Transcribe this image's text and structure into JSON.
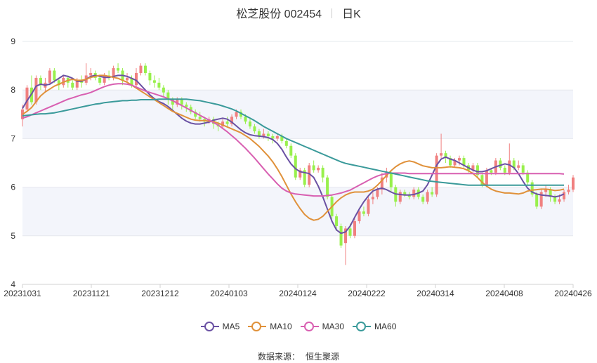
{
  "header": {
    "title": "松芝股份 002454",
    "period": "日K"
  },
  "source": {
    "label": "数据来源：",
    "name": "恒生聚源"
  },
  "chart_data": {
    "type": "candlestick",
    "ylim": [
      4,
      9
    ],
    "y_ticks": [
      "4",
      "5",
      "6",
      "7",
      "8",
      "9"
    ],
    "x_ticks": [
      "20231031",
      "20231121",
      "20231212",
      "20240103",
      "20240124",
      "20240222",
      "20240314",
      "20240408",
      "20240426"
    ],
    "grid": true,
    "legend_placement": "bottom",
    "colors": {
      "up": "#f08080",
      "down": "#98f04c",
      "band": "#f3f5fb",
      "grid": "#e6e8ee",
      "axis": "#d0d0d0"
    },
    "candles": [
      [
        7.4,
        7.6,
        7.25,
        7.7
      ],
      [
        7.6,
        8.05,
        7.55,
        8.1
      ],
      [
        8.05,
        7.75,
        7.7,
        8.3
      ],
      [
        7.75,
        8.25,
        7.7,
        8.3
      ],
      [
        8.25,
        8.1,
        8.0,
        8.3
      ],
      [
        8.05,
        8.15,
        7.95,
        8.25
      ],
      [
        8.15,
        8.4,
        8.1,
        8.45
      ],
      [
        8.4,
        8.2,
        8.15,
        8.45
      ],
      [
        8.2,
        8.1,
        8.0,
        8.25
      ],
      [
        8.1,
        8.25,
        8.05,
        8.3
      ],
      [
        8.25,
        8.15,
        8.05,
        8.3
      ],
      [
        8.15,
        8.05,
        8.0,
        8.2
      ],
      [
        8.05,
        8.2,
        8.0,
        8.25
      ],
      [
        8.2,
        8.15,
        8.05,
        8.3
      ],
      [
        8.15,
        8.3,
        8.1,
        8.55
      ],
      [
        8.3,
        8.35,
        8.2,
        8.45
      ],
      [
        8.35,
        8.25,
        8.2,
        8.4
      ],
      [
        8.25,
        8.15,
        8.1,
        8.3
      ],
      [
        8.15,
        8.3,
        8.1,
        8.35
      ],
      [
        8.3,
        8.25,
        8.2,
        8.4
      ],
      [
        8.25,
        8.45,
        8.2,
        8.5
      ],
      [
        8.45,
        8.4,
        8.35,
        8.55
      ],
      [
        8.4,
        8.2,
        8.1,
        8.45
      ],
      [
        8.2,
        8.25,
        8.15,
        8.35
      ],
      [
        8.25,
        8.1,
        8.05,
        8.3
      ],
      [
        8.1,
        8.35,
        8.05,
        8.45
      ],
      [
        8.35,
        8.5,
        8.3,
        8.55
      ],
      [
        8.5,
        8.35,
        8.3,
        8.55
      ],
      [
        8.35,
        8.2,
        8.1,
        8.4
      ],
      [
        8.2,
        8.15,
        8.05,
        8.3
      ],
      [
        8.15,
        8.05,
        8.0,
        8.25
      ],
      [
        8.05,
        7.95,
        7.85,
        8.1
      ],
      [
        7.95,
        7.8,
        7.7,
        8.0
      ],
      [
        7.8,
        7.7,
        7.6,
        7.85
      ],
      [
        7.7,
        7.8,
        7.65,
        7.85
      ],
      [
        7.8,
        7.7,
        7.6,
        7.85
      ],
      [
        7.7,
        7.65,
        7.55,
        7.75
      ],
      [
        7.65,
        7.55,
        7.5,
        7.7
      ],
      [
        7.55,
        7.45,
        7.4,
        7.6
      ],
      [
        7.45,
        7.4,
        7.35,
        7.55
      ],
      [
        7.4,
        7.35,
        7.25,
        7.45
      ],
      [
        7.35,
        7.4,
        7.3,
        7.45
      ],
      [
        7.4,
        7.3,
        7.2,
        7.45
      ],
      [
        7.3,
        7.25,
        7.15,
        7.35
      ],
      [
        7.25,
        7.35,
        7.2,
        7.4
      ],
      [
        7.35,
        7.3,
        7.25,
        7.45
      ],
      [
        7.3,
        7.45,
        7.25,
        7.5
      ],
      [
        7.45,
        7.55,
        7.4,
        7.6
      ],
      [
        7.55,
        7.45,
        7.4,
        7.6
      ],
      [
        7.45,
        7.35,
        7.3,
        7.5
      ],
      [
        7.35,
        7.25,
        7.2,
        7.4
      ],
      [
        7.25,
        7.15,
        7.1,
        7.3
      ],
      [
        7.15,
        7.05,
        7.0,
        7.2
      ],
      [
        7.05,
        7.1,
        7.0,
        7.2
      ],
      [
        7.1,
        7.05,
        6.95,
        7.15
      ],
      [
        7.05,
        7.0,
        6.9,
        7.1
      ],
      [
        7.0,
        7.05,
        6.95,
        7.1
      ],
      [
        7.05,
        6.95,
        6.9,
        7.1
      ],
      [
        6.95,
        6.85,
        6.8,
        7.0
      ],
      [
        6.85,
        6.65,
        6.6,
        6.9
      ],
      [
        6.65,
        6.2,
        6.15,
        6.7
      ],
      [
        6.2,
        6.35,
        6.15,
        6.4
      ],
      [
        6.35,
        6.05,
        6.0,
        6.4
      ],
      [
        6.05,
        6.45,
        6.0,
        6.5
      ],
      [
        6.45,
        6.35,
        6.3,
        6.55
      ],
      [
        6.35,
        6.4,
        6.3,
        6.45
      ],
      [
        6.4,
        6.2,
        6.1,
        6.45
      ],
      [
        6.2,
        5.8,
        5.75,
        6.25
      ],
      [
        5.8,
        5.4,
        5.35,
        5.85
      ],
      [
        5.4,
        5.2,
        5.1,
        5.45
      ],
      [
        5.2,
        4.8,
        4.75,
        5.25
      ],
      [
        4.85,
        5.15,
        4.4,
        5.2
      ],
      [
        5.15,
        5.0,
        4.95,
        5.25
      ],
      [
        5.0,
        5.3,
        4.95,
        5.35
      ],
      [
        5.3,
        5.5,
        5.25,
        5.55
      ],
      [
        5.5,
        5.45,
        5.4,
        5.6
      ],
      [
        5.45,
        5.75,
        5.4,
        5.8
      ],
      [
        5.75,
        5.8,
        5.65,
        5.9
      ],
      [
        5.8,
        5.95,
        5.75,
        6.0
      ],
      [
        5.95,
        6.2,
        5.85,
        6.3
      ],
      [
        6.2,
        6.3,
        6.1,
        6.4
      ],
      [
        6.3,
        6.0,
        5.9,
        6.35
      ],
      [
        6.0,
        5.7,
        5.6,
        6.05
      ],
      [
        5.7,
        5.9,
        5.65,
        5.95
      ],
      [
        5.9,
        5.85,
        5.8,
        5.95
      ],
      [
        5.85,
        5.8,
        5.75,
        5.9
      ],
      [
        5.8,
        5.95,
        5.75,
        6.0
      ],
      [
        5.95,
        5.8,
        5.75,
        6.0
      ],
      [
        5.8,
        5.7,
        5.65,
        5.85
      ],
      [
        5.7,
        5.9,
        5.65,
        5.95
      ],
      [
        5.9,
        5.85,
        5.8,
        6.0
      ],
      [
        5.85,
        6.65,
        5.8,
        6.7
      ],
      [
        6.65,
        6.7,
        6.6,
        7.1
      ],
      [
        6.7,
        6.6,
        6.5,
        6.75
      ],
      [
        6.6,
        6.45,
        6.4,
        6.65
      ],
      [
        6.45,
        6.55,
        6.4,
        6.6
      ],
      [
        6.55,
        6.6,
        6.45,
        6.65
      ],
      [
        6.6,
        6.45,
        6.4,
        6.65
      ],
      [
        6.45,
        6.35,
        6.3,
        6.5
      ],
      [
        6.35,
        6.45,
        6.3,
        6.5
      ],
      [
        6.45,
        6.25,
        6.2,
        6.5
      ],
      [
        6.25,
        6.05,
        6.0,
        6.3
      ],
      [
        6.05,
        6.35,
        6.0,
        6.4
      ],
      [
        6.35,
        6.3,
        6.25,
        6.4
      ],
      [
        6.3,
        6.55,
        6.25,
        6.6
      ],
      [
        6.55,
        6.4,
        6.35,
        6.6
      ],
      [
        6.4,
        6.3,
        6.25,
        6.45
      ],
      [
        6.3,
        6.55,
        6.25,
        6.9
      ],
      [
        6.55,
        6.4,
        6.35,
        6.6
      ],
      [
        6.4,
        6.45,
        6.35,
        6.55
      ],
      [
        6.45,
        6.3,
        6.25,
        6.5
      ],
      [
        6.3,
        6.1,
        6.05,
        6.35
      ],
      [
        6.1,
        5.85,
        5.8,
        6.15
      ],
      [
        5.85,
        5.6,
        5.55,
        5.9
      ],
      [
        5.6,
        5.9,
        5.55,
        5.95
      ],
      [
        5.9,
        5.95,
        5.8,
        6.05
      ],
      [
        5.95,
        5.8,
        5.7,
        6.0
      ],
      [
        5.8,
        5.7,
        5.65,
        5.85
      ],
      [
        5.7,
        5.75,
        5.65,
        5.85
      ],
      [
        5.75,
        5.9,
        5.7,
        5.95
      ],
      [
        5.9,
        5.95,
        5.85,
        6.05
      ],
      [
        5.95,
        6.2,
        5.9,
        6.25
      ]
    ],
    "series": [
      {
        "name": "MA5",
        "color": "#6a51a3",
        "values": [
          7.62,
          7.78,
          7.92,
          8.08,
          8.12,
          8.1,
          8.12,
          8.18,
          8.24,
          8.3,
          8.28,
          8.24,
          8.18,
          8.18,
          8.22,
          8.28,
          8.3,
          8.28,
          8.26,
          8.26,
          8.28,
          8.3,
          8.3,
          8.28,
          8.24,
          8.2,
          8.1,
          8.0,
          7.9,
          7.82,
          7.76,
          7.72,
          7.66,
          7.58,
          7.5,
          7.42,
          7.36,
          7.32,
          7.3,
          7.3,
          7.32,
          7.34,
          7.38,
          7.4,
          7.42,
          7.4,
          7.34,
          7.26,
          7.18,
          7.12,
          7.08,
          7.06,
          7.05,
          7.04,
          7.02,
          6.98,
          6.9,
          6.78,
          6.62,
          6.48,
          6.38,
          6.32,
          6.3,
          6.28,
          6.2,
          6.02,
          5.8,
          5.55,
          5.3,
          5.12,
          5.05,
          5.08,
          5.2,
          5.38,
          5.55,
          5.7,
          5.82,
          5.92,
          5.96,
          5.98,
          5.95,
          5.9,
          5.86,
          5.85,
          5.84,
          5.84,
          5.85,
          5.88,
          5.92,
          6.05,
          6.25,
          6.45,
          6.58,
          6.62,
          6.58,
          6.55,
          6.5,
          6.45,
          6.4,
          6.35,
          6.32,
          6.32,
          6.34,
          6.38,
          6.42,
          6.45,
          6.48,
          6.46,
          6.4,
          6.28,
          6.12,
          5.98,
          5.9,
          5.86,
          5.84,
          5.83,
          5.82,
          5.8,
          5.82,
          5.86
        ]
      },
      {
        "name": "MA10",
        "color": "#e0913a",
        "values": [
          7.5,
          7.56,
          7.64,
          7.76,
          7.88,
          7.96,
          8.02,
          8.08,
          8.12,
          8.16,
          8.2,
          8.22,
          8.2,
          8.2,
          8.22,
          8.26,
          8.28,
          8.3,
          8.3,
          8.28,
          8.26,
          8.24,
          8.2,
          8.16,
          8.1,
          8.04,
          7.98,
          7.92,
          7.86,
          7.8,
          7.74,
          7.68,
          7.62,
          7.56,
          7.52,
          7.48,
          7.44,
          7.4,
          7.38,
          7.37,
          7.37,
          7.36,
          7.35,
          7.32,
          7.28,
          7.24,
          7.2,
          7.16,
          7.12,
          7.06,
          7.0,
          6.92,
          6.84,
          6.74,
          6.64,
          6.52,
          6.38,
          6.22,
          6.04,
          5.86,
          5.7,
          5.56,
          5.44,
          5.36,
          5.32,
          5.34,
          5.4,
          5.5,
          5.6,
          5.7,
          5.78,
          5.84,
          5.88,
          5.9,
          5.9,
          5.9,
          5.92,
          5.96,
          6.04,
          6.14,
          6.24,
          6.34,
          6.42,
          6.48,
          6.52,
          6.54,
          6.52,
          6.48,
          6.44,
          6.42,
          6.4,
          6.4,
          6.4,
          6.41,
          6.42,
          6.41,
          6.4,
          6.38,
          6.34,
          6.28,
          6.2,
          6.1,
          6.02,
          5.96,
          5.92,
          5.9,
          5.88,
          5.88,
          5.87,
          5.86,
          5.88,
          5.92,
          5.94,
          5.95,
          5.96,
          5.96,
          5.95,
          5.93,
          5.94,
          5.96
        ]
      },
      {
        "name": "MA30",
        "color": "#d85fb1",
        "values": [
          7.42,
          7.45,
          7.49,
          7.53,
          7.57,
          7.61,
          7.65,
          7.69,
          7.73,
          7.77,
          7.81,
          7.84,
          7.87,
          7.9,
          7.92,
          7.95,
          7.99,
          8.03,
          8.07,
          8.1,
          8.12,
          8.13,
          8.13,
          8.12,
          8.1,
          8.06,
          8.02,
          7.98,
          7.95,
          7.92,
          7.89,
          7.86,
          7.82,
          7.78,
          7.73,
          7.68,
          7.63,
          7.58,
          7.53,
          7.48,
          7.43,
          7.38,
          7.33,
          7.28,
          7.21,
          7.14,
          7.06,
          6.98,
          6.89,
          6.8,
          6.7,
          6.6,
          6.49,
          6.38,
          6.27,
          6.17,
          6.07,
          5.98,
          5.92,
          5.88,
          5.86,
          5.85,
          5.84,
          5.83,
          5.82,
          5.82,
          5.82,
          5.83,
          5.84,
          5.86,
          5.88,
          5.91,
          5.94,
          5.99,
          6.04,
          6.09,
          6.14,
          6.19,
          6.23,
          6.26,
          6.28,
          6.29,
          6.29,
          6.29,
          6.29,
          6.28,
          6.28,
          6.28,
          6.28,
          6.28,
          6.28,
          6.28,
          6.28,
          6.28,
          6.28,
          6.28,
          6.28,
          6.28,
          6.28,
          6.28,
          6.28,
          6.28,
          6.28,
          6.28,
          6.28,
          6.28,
          6.28,
          6.28,
          6.28,
          6.28,
          6.28,
          6.28,
          6.28,
          6.28,
          6.28,
          6.28,
          6.28,
          6.28,
          6.28,
          6.27
        ]
      },
      {
        "name": "MA60",
        "color": "#3a9a9a",
        "values": [
          7.47,
          7.48,
          7.49,
          7.5,
          7.51,
          7.51,
          7.52,
          7.53,
          7.55,
          7.57,
          7.59,
          7.61,
          7.63,
          7.65,
          7.67,
          7.69,
          7.71,
          7.72,
          7.74,
          7.75,
          7.76,
          7.77,
          7.78,
          7.78,
          7.79,
          7.79,
          7.8,
          7.8,
          7.8,
          7.8,
          7.81,
          7.81,
          7.81,
          7.81,
          7.81,
          7.81,
          7.81,
          7.8,
          7.79,
          7.78,
          7.76,
          7.74,
          7.72,
          7.7,
          7.67,
          7.64,
          7.61,
          7.57,
          7.52,
          7.47,
          7.42,
          7.37,
          7.31,
          7.25,
          7.2,
          7.15,
          7.1,
          7.05,
          7.0,
          6.96,
          6.92,
          6.88,
          6.84,
          6.8,
          6.76,
          6.72,
          6.68,
          6.64,
          6.6,
          6.56,
          6.52,
          6.49,
          6.47,
          6.45,
          6.43,
          6.41,
          6.39,
          6.37,
          6.35,
          6.33,
          6.31,
          6.29,
          6.27,
          6.25,
          6.23,
          6.21,
          6.19,
          6.17,
          6.15,
          6.13,
          6.12,
          6.11,
          6.1,
          6.09,
          6.08,
          6.07,
          6.06,
          6.05,
          6.04,
          6.04,
          6.04,
          6.04,
          6.04,
          6.04,
          6.04,
          6.04,
          6.04,
          6.04,
          6.04,
          6.04,
          6.04,
          6.04,
          6.04,
          6.04,
          6.04,
          6.04,
          6.04,
          6.04,
          6.04,
          6.04
        ]
      }
    ]
  }
}
